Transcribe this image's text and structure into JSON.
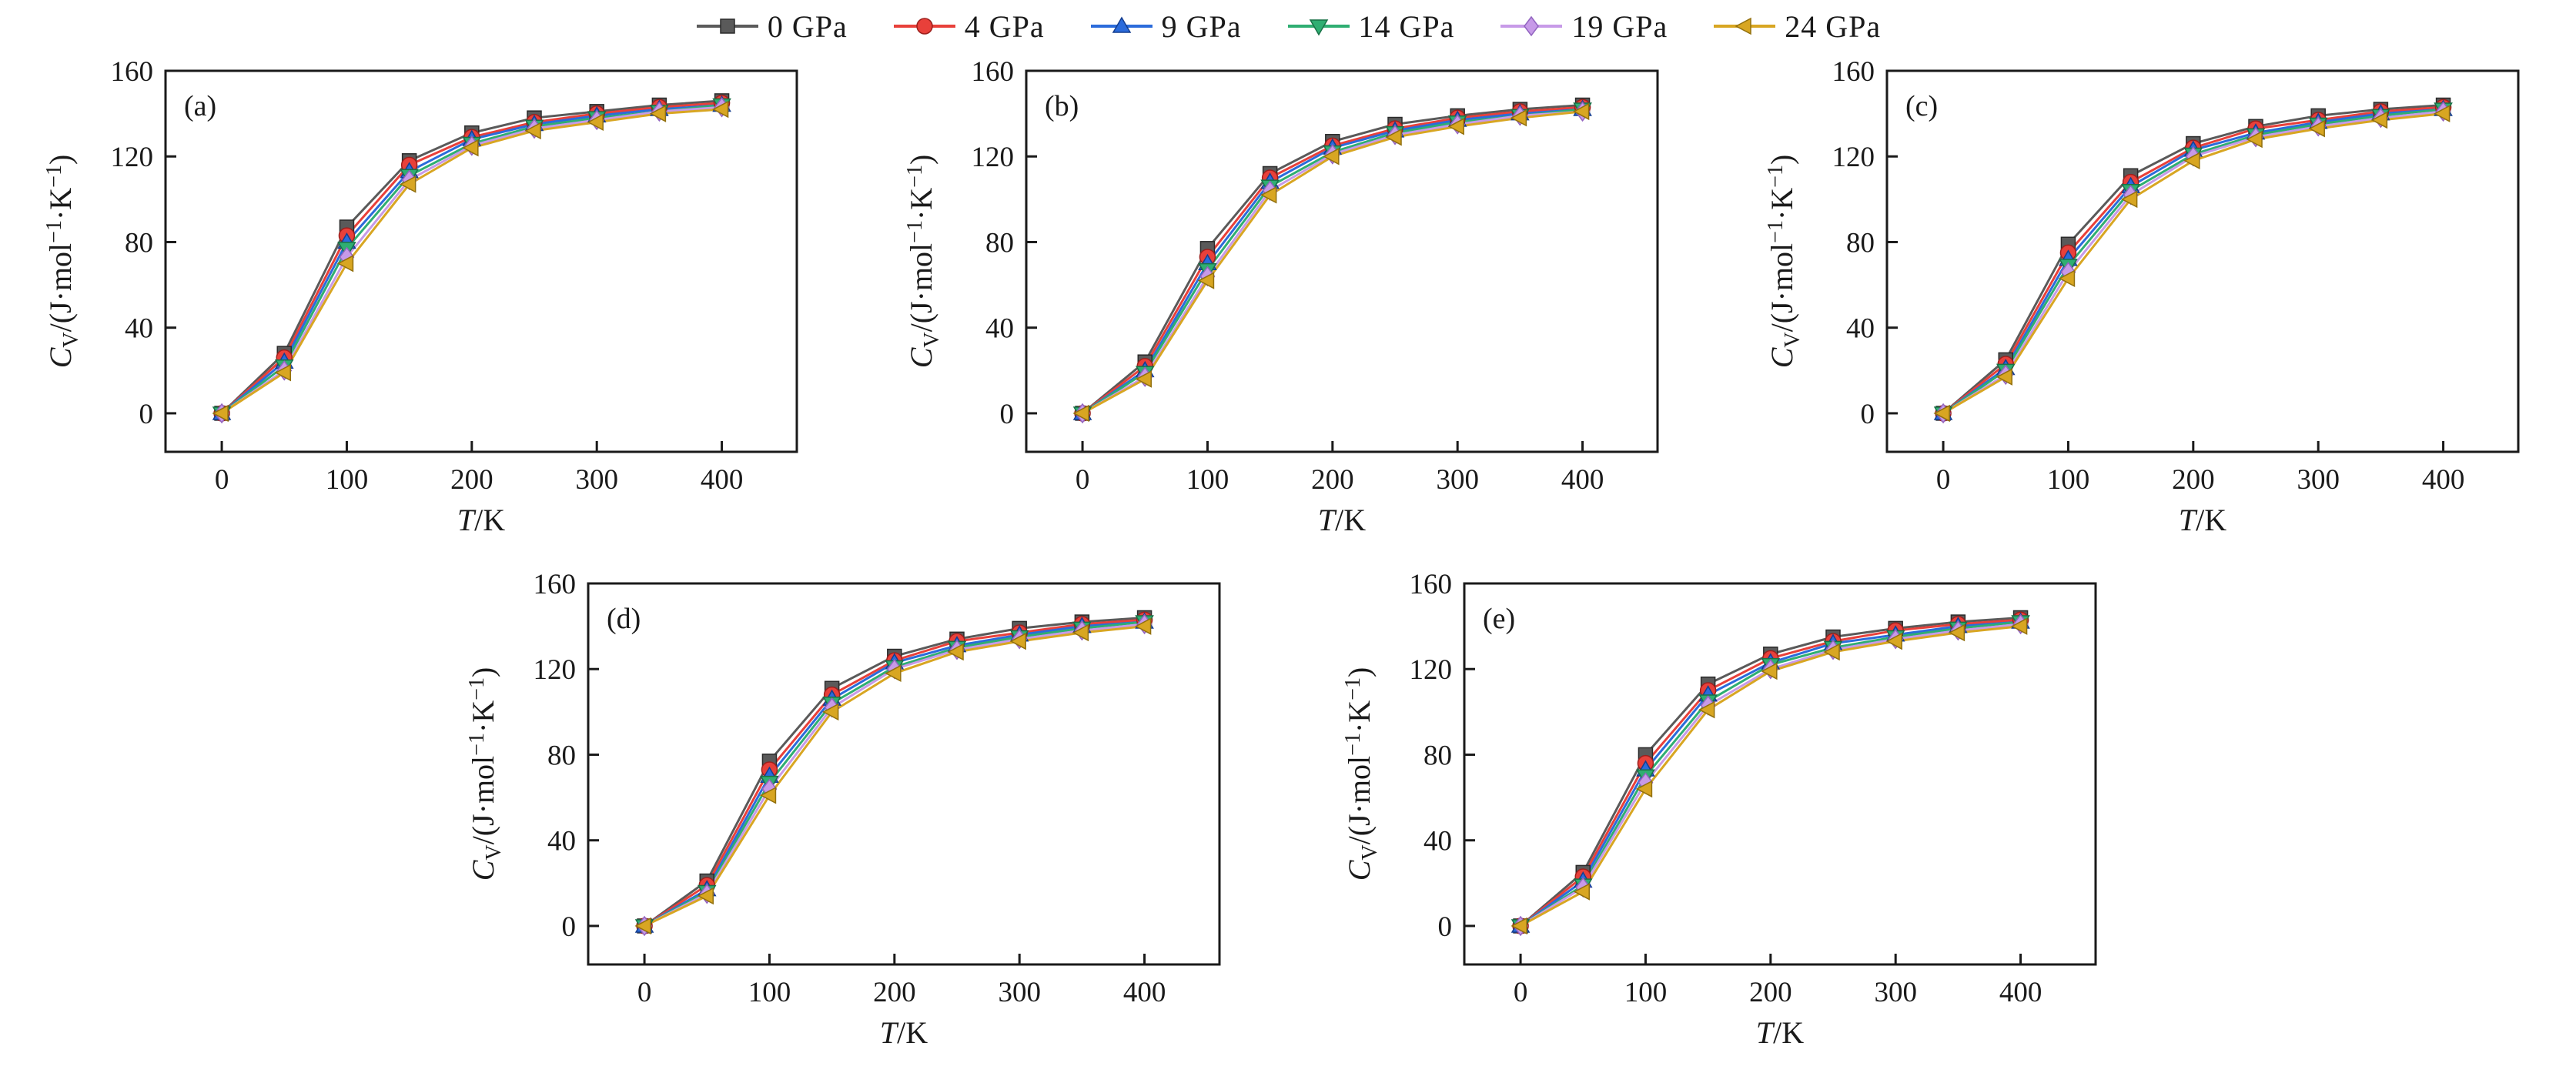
{
  "legend": {
    "entries": [
      {
        "label": "0 GPa",
        "marker": "square",
        "color": "#5a5a5a",
        "edge": "#2b2b2b"
      },
      {
        "label": "4 GPa",
        "marker": "circle",
        "color": "#e8403a",
        "edge": "#9c1f1c"
      },
      {
        "label": "9 GPa",
        "marker": "triangle-up",
        "color": "#2b6bdb",
        "edge": "#153e8f"
      },
      {
        "label": "14 GPa",
        "marker": "triangle-down",
        "color": "#2fae72",
        "edge": "#197147"
      },
      {
        "label": "19 GPa",
        "marker": "diamond",
        "color": "#c79ae8",
        "edge": "#9264c0"
      },
      {
        "label": "24 GPa",
        "marker": "triangle-left",
        "color": "#d8a622",
        "edge": "#92700e"
      }
    ]
  },
  "axes": {
    "xlabel_segments": [
      {
        "t": "T",
        "italic": true
      },
      {
        "t": "/K"
      }
    ],
    "ylabel_segments": [
      {
        "t": "C",
        "italic": true
      },
      {
        "t": "V",
        "sub": true
      },
      {
        "t": "/(J·mol"
      },
      {
        "t": "−1",
        "sup": true
      },
      {
        "t": "·K"
      },
      {
        "t": "−1",
        "sup": true
      },
      {
        "t": ")"
      }
    ]
  },
  "chart_data": [
    {
      "type": "line",
      "panel_label": "(a)",
      "xlabel": "T/K",
      "ylabel": "C_V/(J·mol⁻¹·K⁻¹)",
      "xlim": [
        -45,
        460
      ],
      "ylim": [
        -18,
        160
      ],
      "xticks": [
        0,
        100,
        200,
        300,
        400
      ],
      "yticks": [
        0,
        40,
        80,
        120,
        160
      ],
      "x": [
        0,
        50,
        100,
        150,
        200,
        250,
        300,
        350,
        400
      ],
      "series": [
        {
          "name": "0 GPa",
          "values": [
            0,
            28,
            87,
            118,
            131,
            138,
            141,
            144,
            146
          ]
        },
        {
          "name": "4 GPa",
          "values": [
            0,
            26,
            83,
            116,
            129,
            136,
            140,
            143,
            145
          ]
        },
        {
          "name": "9 GPa",
          "values": [
            0,
            24,
            80,
            113,
            128,
            135,
            139,
            142,
            144
          ]
        },
        {
          "name": "14 GPa",
          "values": [
            0,
            22,
            77,
            111,
            126,
            134,
            138,
            141,
            144
          ]
        },
        {
          "name": "19 GPa",
          "values": [
            0,
            20,
            73,
            109,
            125,
            133,
            137,
            141,
            143
          ]
        },
        {
          "name": "24 GPa",
          "values": [
            0,
            19,
            70,
            107,
            124,
            132,
            136,
            140,
            142
          ]
        }
      ]
    },
    {
      "type": "line",
      "panel_label": "(b)",
      "xlabel": "T/K",
      "ylabel": "C_V/(J·mol⁻¹·K⁻¹)",
      "xlim": [
        -45,
        460
      ],
      "ylim": [
        -18,
        160
      ],
      "xticks": [
        0,
        100,
        200,
        300,
        400
      ],
      "yticks": [
        0,
        40,
        80,
        120,
        160
      ],
      "x": [
        0,
        50,
        100,
        150,
        200,
        250,
        300,
        350,
        400
      ],
      "series": [
        {
          "name": "0 GPa",
          "values": [
            0,
            24,
            77,
            112,
            127,
            135,
            139,
            142,
            144
          ]
        },
        {
          "name": "4 GPa",
          "values": [
            0,
            22,
            73,
            110,
            125,
            133,
            138,
            141,
            143
          ]
        },
        {
          "name": "9 GPa",
          "values": [
            0,
            20,
            70,
            108,
            124,
            132,
            137,
            140,
            142
          ]
        },
        {
          "name": "14 GPa",
          "values": [
            0,
            19,
            67,
            106,
            122,
            131,
            136,
            139,
            142
          ]
        },
        {
          "name": "19 GPa",
          "values": [
            0,
            17,
            64,
            104,
            121,
            130,
            135,
            139,
            141
          ]
        },
        {
          "name": "24 GPa",
          "values": [
            0,
            16,
            62,
            102,
            120,
            129,
            134,
            138,
            141
          ]
        }
      ]
    },
    {
      "type": "line",
      "panel_label": "(c)",
      "xlabel": "T/K",
      "ylabel": "C_V/(J·mol⁻¹·K⁻¹)",
      "xlim": [
        -45,
        460
      ],
      "ylim": [
        -18,
        160
      ],
      "xticks": [
        0,
        100,
        200,
        300,
        400
      ],
      "yticks": [
        0,
        40,
        80,
        120,
        160
      ],
      "x": [
        0,
        50,
        100,
        150,
        200,
        250,
        300,
        350,
        400
      ],
      "series": [
        {
          "name": "0 GPa",
          "values": [
            0,
            25,
            79,
            111,
            126,
            134,
            139,
            142,
            144
          ]
        },
        {
          "name": "4 GPa",
          "values": [
            0,
            23,
            75,
            108,
            124,
            133,
            137,
            141,
            143
          ]
        },
        {
          "name": "9 GPa",
          "values": [
            0,
            21,
            72,
            106,
            123,
            131,
            136,
            140,
            142
          ]
        },
        {
          "name": "14 GPa",
          "values": [
            0,
            20,
            69,
            104,
            121,
            130,
            135,
            139,
            142
          ]
        },
        {
          "name": "19 GPa",
          "values": [
            0,
            18,
            66,
            102,
            120,
            129,
            134,
            138,
            141
          ]
        },
        {
          "name": "24 GPa",
          "values": [
            0,
            17,
            63,
            100,
            118,
            128,
            133,
            137,
            140
          ]
        }
      ]
    },
    {
      "type": "line",
      "panel_label": "(d)",
      "xlabel": "T/K",
      "ylabel": "C_V/(J·mol⁻¹·K⁻¹)",
      "xlim": [
        -45,
        460
      ],
      "ylim": [
        -18,
        160
      ],
      "xticks": [
        0,
        100,
        200,
        300,
        400
      ],
      "yticks": [
        0,
        40,
        80,
        120,
        160
      ],
      "x": [
        0,
        50,
        100,
        150,
        200,
        250,
        300,
        350,
        400
      ],
      "series": [
        {
          "name": "0 GPa",
          "values": [
            0,
            21,
            77,
            111,
            126,
            134,
            139,
            142,
            144
          ]
        },
        {
          "name": "4 GPa",
          "values": [
            0,
            19,
            73,
            108,
            124,
            133,
            137,
            141,
            143
          ]
        },
        {
          "name": "9 GPa",
          "values": [
            0,
            17,
            70,
            106,
            123,
            131,
            136,
            140,
            142
          ]
        },
        {
          "name": "14 GPa",
          "values": [
            0,
            16,
            67,
            104,
            121,
            130,
            135,
            139,
            142
          ]
        },
        {
          "name": "19 GPa",
          "values": [
            0,
            15,
            64,
            102,
            120,
            129,
            134,
            138,
            141
          ]
        },
        {
          "name": "24 GPa",
          "values": [
            0,
            14,
            61,
            100,
            118,
            128,
            133,
            137,
            140
          ]
        }
      ]
    },
    {
      "type": "line",
      "panel_label": "(e)",
      "xlabel": "T/K",
      "ylabel": "C_V/(J·mol⁻¹·K⁻¹)",
      "xlim": [
        -45,
        460
      ],
      "ylim": [
        -18,
        160
      ],
      "xticks": [
        0,
        100,
        200,
        300,
        400
      ],
      "yticks": [
        0,
        40,
        80,
        120,
        160
      ],
      "x": [
        0,
        50,
        100,
        150,
        200,
        250,
        300,
        350,
        400
      ],
      "series": [
        {
          "name": "0 GPa",
          "values": [
            0,
            25,
            80,
            113,
            127,
            135,
            139,
            142,
            144
          ]
        },
        {
          "name": "4 GPa",
          "values": [
            0,
            23,
            76,
            110,
            125,
            133,
            138,
            141,
            143
          ]
        },
        {
          "name": "9 GPa",
          "values": [
            0,
            21,
            73,
            108,
            123,
            132,
            136,
            140,
            142
          ]
        },
        {
          "name": "14 GPa",
          "values": [
            0,
            19,
            70,
            105,
            122,
            130,
            135,
            139,
            142
          ]
        },
        {
          "name": "19 GPa",
          "values": [
            0,
            18,
            67,
            103,
            120,
            129,
            134,
            138,
            141
          ]
        },
        {
          "name": "24 GPa",
          "values": [
            0,
            16,
            64,
            101,
            119,
            128,
            133,
            137,
            140
          ]
        }
      ]
    }
  ]
}
